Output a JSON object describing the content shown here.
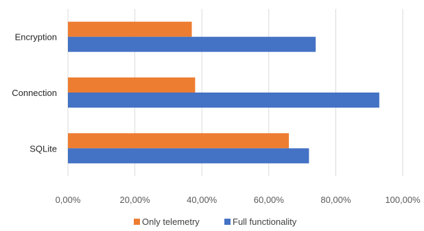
{
  "chart_data": {
    "type": "bar",
    "orientation": "horizontal",
    "categories": [
      "Encryption",
      "Connection",
      "SQLite"
    ],
    "series": [
      {
        "name": "Only telemetry",
        "color": "#ED7D31",
        "values": [
          0.37,
          0.38,
          0.66
        ]
      },
      {
        "name": "Full functionality",
        "color": "#4472C4",
        "values": [
          0.74,
          0.93,
          0.72
        ]
      }
    ],
    "x_ticks": [
      "0,00%",
      "20,00%",
      "40,00%",
      "60,00%",
      "80,00%",
      "100,00%"
    ],
    "xlim": [
      0,
      1.0
    ],
    "grid": true,
    "legend_position": "bottom",
    "title": "",
    "xlabel": "",
    "ylabel": ""
  }
}
